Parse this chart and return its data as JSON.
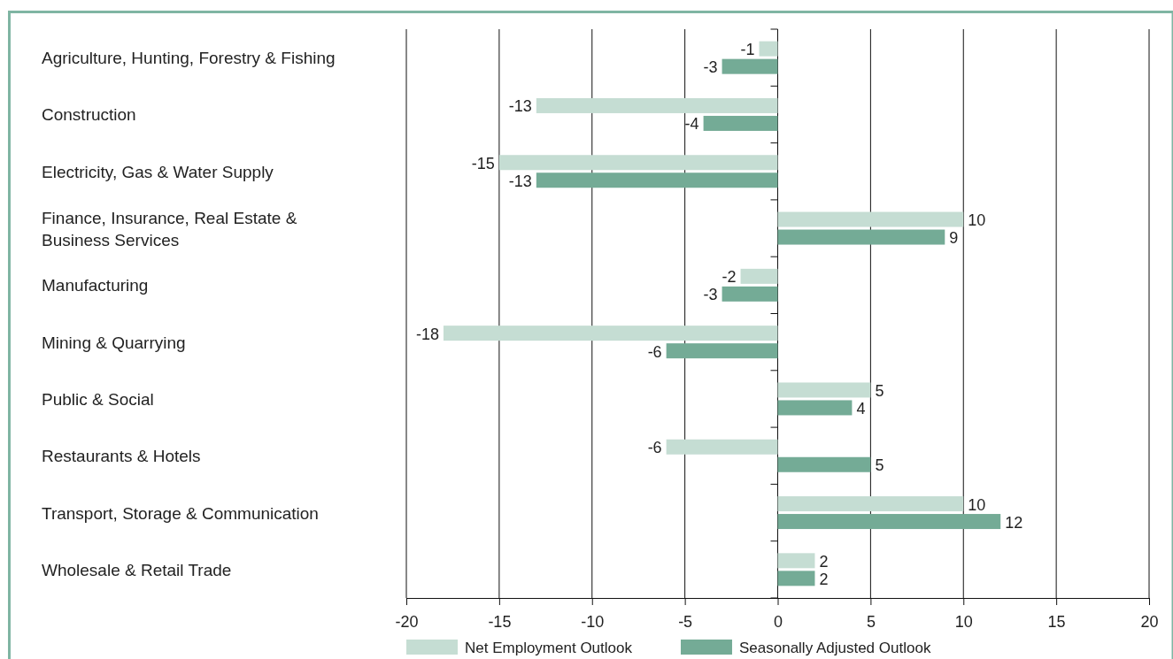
{
  "chart_data": {
    "type": "bar",
    "orientation": "horizontal",
    "categories": [
      "Agriculture, Hunting, Forestry & Fishing",
      "Construction",
      "Electricity, Gas & Water Supply",
      "Finance, Insurance, Real Estate & Business Services",
      "Manufacturing",
      "Mining & Quarrying",
      "Public & Social",
      "Restaurants & Hotels",
      "Transport, Storage & Communication",
      "Wholesale & Retail Trade"
    ],
    "series": [
      {
        "name": "Net Employment Outlook",
        "color": "#c5ddd3",
        "values": [
          -1,
          -13,
          -15,
          10,
          -2,
          -18,
          5,
          -6,
          10,
          2
        ]
      },
      {
        "name": "Seasonally Adjusted Outlook",
        "color": "#74ab96",
        "values": [
          -3,
          -4,
          -13,
          9,
          -3,
          -6,
          4,
          5,
          12,
          2
        ]
      }
    ],
    "xlim": [
      -20,
      20
    ],
    "xticks": [
      -20,
      -15,
      -10,
      -5,
      0,
      5,
      10,
      15,
      20
    ],
    "grid": "x",
    "legend": "bottom",
    "data_labels": true
  }
}
